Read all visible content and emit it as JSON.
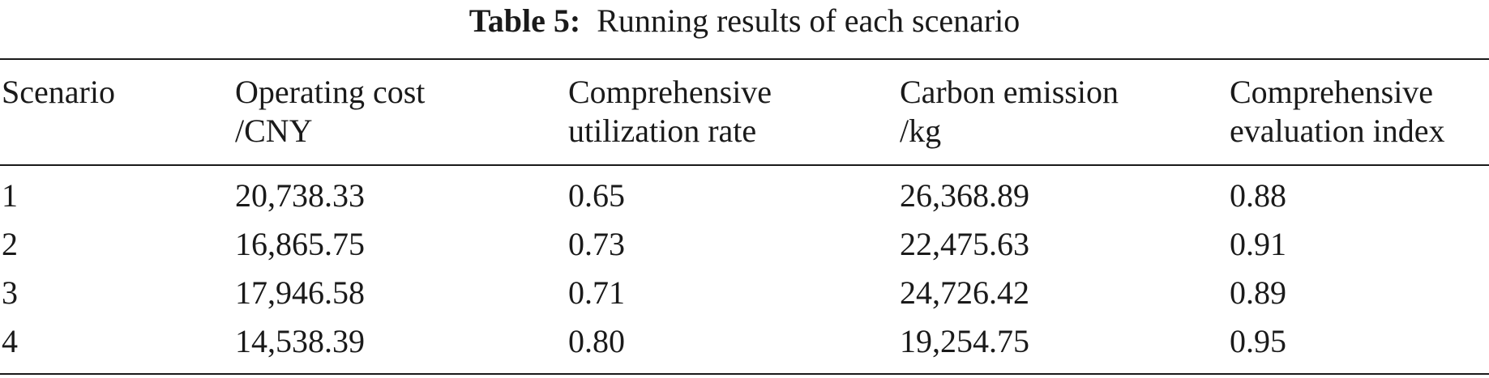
{
  "caption": {
    "label": "Table 5:",
    "title": "Running results of each scenario"
  },
  "headers": [
    [
      "Scenario",
      ""
    ],
    [
      "Operating cost",
      "/CNY"
    ],
    [
      "Comprehensive",
      "utilization rate"
    ],
    [
      "Carbon emission",
      "/kg"
    ],
    [
      "Comprehensive",
      "evaluation index"
    ]
  ],
  "rows": [
    [
      "1",
      "20,738.33",
      "0.65",
      "26,368.89",
      "0.88"
    ],
    [
      "2",
      "16,865.75",
      "0.73",
      "22,475.63",
      "0.91"
    ],
    [
      "3",
      "17,946.58",
      "0.71",
      "24,726.42",
      "0.89"
    ],
    [
      "4",
      "14,538.39",
      "0.80",
      "19,254.75",
      "0.95"
    ]
  ]
}
